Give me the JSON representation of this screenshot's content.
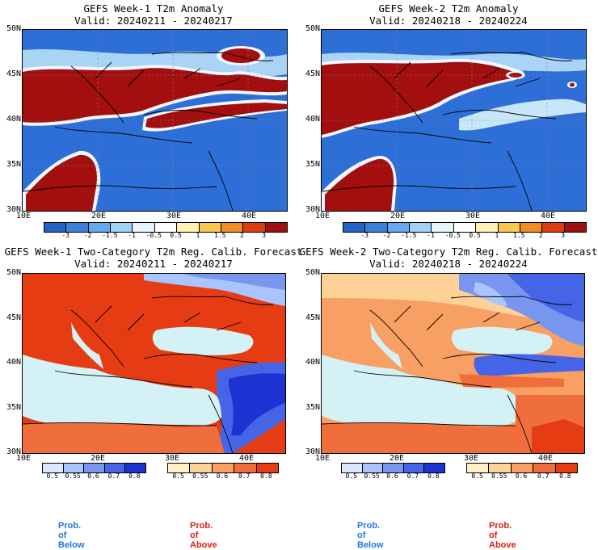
{
  "panels": [
    {
      "title": "GEFS Week-1 T2m Anomaly",
      "valid": "Valid: 20240211 - 20240217",
      "type": "anomaly"
    },
    {
      "title": "GEFS Week-2 T2m Anomaly",
      "valid": "Valid: 20240218 - 20240224",
      "type": "anomaly"
    },
    {
      "title": "GEFS Week-1 Two-Category T2m Reg. Calib. Forecast",
      "valid": "Valid: 20240211 - 20240217",
      "type": "probability"
    },
    {
      "title": "GEFS Week-2 Two-Category T2m Reg. Calib. Forecast",
      "valid": "Valid: 20240218 - 20240224",
      "type": "probability"
    }
  ],
  "axes": {
    "lat_labels": [
      "50N",
      "45N",
      "40N",
      "35N",
      "30N"
    ],
    "lon_labels": [
      "10E",
      "20E",
      "30E",
      "40E"
    ]
  },
  "anomaly_colorbar": {
    "labels": [
      "-3",
      "-2",
      "-1.5",
      "-1",
      "-0.5",
      "0.5",
      "1",
      "1.5",
      "2",
      "3"
    ],
    "colors": [
      "#2464c8",
      "#3c82dc",
      "#64a8f0",
      "#a0d2f8",
      "#e6f6ff",
      "#ffffff",
      "#fff0b4",
      "#f8c850",
      "#f08c28",
      "#dc3c14",
      "#a01010"
    ]
  },
  "prob_colorbar": {
    "below_labels": [
      "0.5",
      "0.55",
      "0.6",
      "0.7",
      "0.8"
    ],
    "below_colors": [
      "#dce8ff",
      "#aac4ff",
      "#7896f0",
      "#4664e6",
      "#1e32d2"
    ],
    "above_labels": [
      "0.5",
      "0.55",
      "0.6",
      "0.7",
      "0.8"
    ],
    "above_colors": [
      "#fff0c8",
      "#fcd296",
      "#f8a064",
      "#f06e3c",
      "#e63c14"
    ]
  },
  "legend": {
    "below": "Prob. of Below",
    "above": "Prob. of Above",
    "below_color": "#1e78dc",
    "above_color": "#dc1e14"
  },
  "colors": {
    "ocean": "#d4f2f6",
    "anomaly_neg": "#2d6fd6",
    "anomaly_pos": "#a30f0f"
  }
}
